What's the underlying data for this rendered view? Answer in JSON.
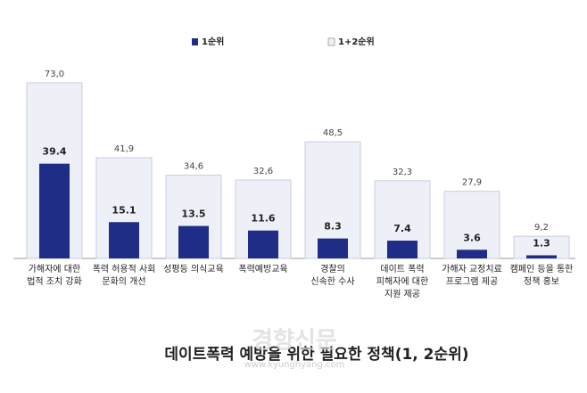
{
  "chart_data": {
    "type": "overlap_bar",
    "title": "데이트폭력 예방을 위한 필요한 정책(1, 2순위)",
    "watermark": [
      "경향신문",
      "www.kyunghyang.com"
    ],
    "categories": [
      "가해자에 대한\n법적 조치 강화",
      "폭력 허용적 사회\n문화의 개선",
      "성평등 의식교육",
      "폭력예방교육",
      "경찰의\n신속한 수사",
      "데이트 폭력\n피해자에 대한\n지원 제공",
      "가해자 교정치료\n프로그램 제공",
      "캠페인 등을 통한\n정책 홍보"
    ],
    "series": [
      {
        "name": "1+2순위",
        "color": "#eef0f8",
        "values": [
          73.0,
          41.9,
          34.6,
          32.6,
          48.5,
          32.3,
          27.9,
          9.2
        ],
        "value_labels": [
          "73,0",
          "41,9",
          "34,6",
          "32,6",
          "48,5",
          "32,3",
          "27,9",
          "9,2"
        ]
      },
      {
        "name": "1순위",
        "color": "#1f2d86",
        "values": [
          39.4,
          15.1,
          13.5,
          11.6,
          8.3,
          7.4,
          3.6,
          1.3
        ]
      }
    ]
  }
}
